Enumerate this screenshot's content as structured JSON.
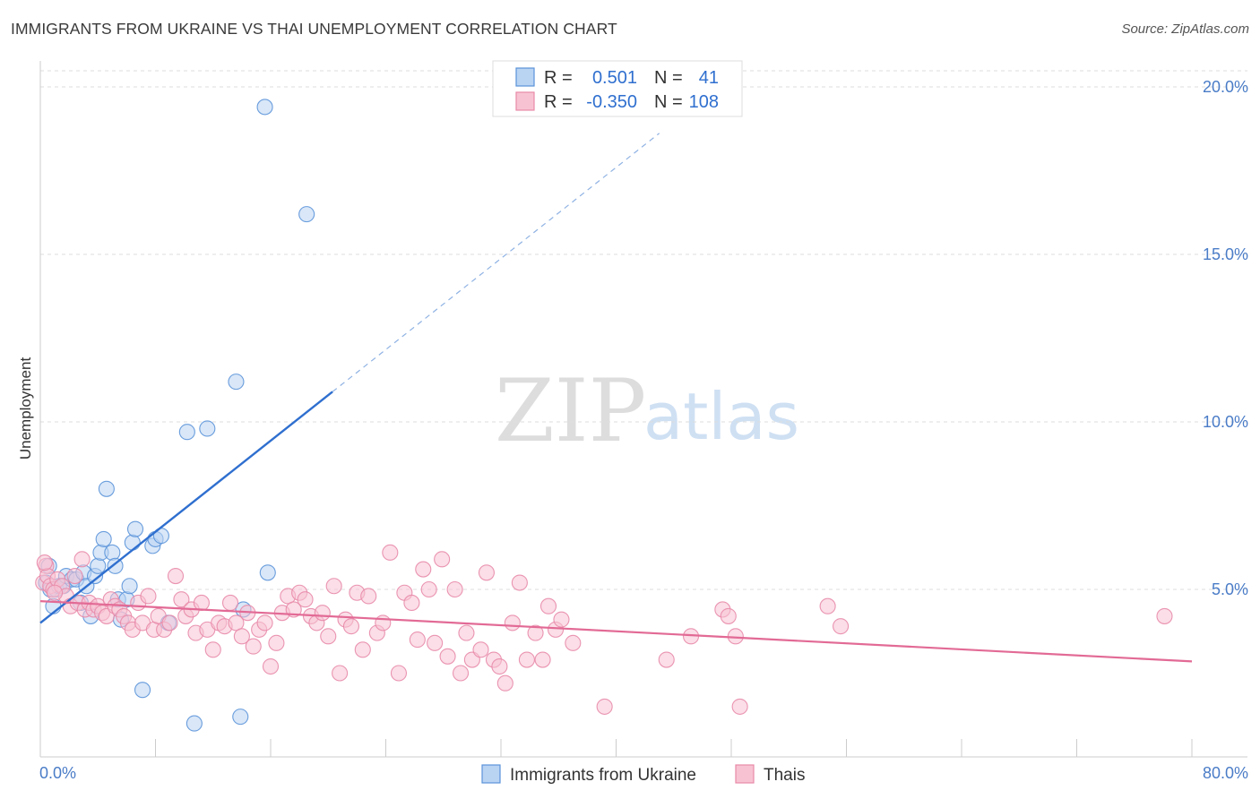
{
  "title": "IMMIGRANTS FROM UKRAINE VS THAI UNEMPLOYMENT CORRELATION CHART",
  "source": "Source: ZipAtlas.com",
  "watermark": {
    "zip": "ZIP",
    "atlas": "atlas"
  },
  "legend": {
    "r_label": "R =",
    "n_label": "N =",
    "rows": [
      {
        "r": "0.501",
        "n": "41"
      },
      {
        "r": "-0.350",
        "n": "108"
      }
    ]
  },
  "chart_data": {
    "type": "scatter",
    "xlabel": "",
    "ylabel": "Unemployment",
    "xlim": [
      0,
      80
    ],
    "ylim": [
      0,
      20.5
    ],
    "x_tick_labels": [
      "0.0%",
      "80.0%"
    ],
    "y_ticks": [
      5,
      10,
      15,
      20
    ],
    "y_tick_labels": [
      "5.0%",
      "10.0%",
      "15.0%",
      "20.0%"
    ],
    "grid": true,
    "legend_position": "top-center",
    "series": [
      {
        "name": "Immigrants from Ukraine",
        "color": "#5b93d9",
        "fill": "#b9d3f3",
        "trend": {
          "x0": 0.0,
          "y0": 4.0,
          "x1": 20.3,
          "y1": 10.9,
          "dashed_to_x": 43.0
        },
        "points": [
          [
            0.4,
            5.2
          ],
          [
            0.6,
            5.7
          ],
          [
            0.7,
            5.0
          ],
          [
            0.9,
            4.5
          ],
          [
            1.1,
            5.0
          ],
          [
            1.3,
            5.1
          ],
          [
            1.6,
            5.1
          ],
          [
            1.8,
            5.4
          ],
          [
            2.2,
            5.3
          ],
          [
            2.5,
            5.3
          ],
          [
            2.8,
            4.6
          ],
          [
            3.0,
            5.5
          ],
          [
            3.2,
            5.1
          ],
          [
            3.5,
            4.2
          ],
          [
            3.8,
            5.4
          ],
          [
            4.0,
            5.7
          ],
          [
            4.2,
            6.1
          ],
          [
            4.4,
            6.5
          ],
          [
            4.6,
            8.0
          ],
          [
            5.0,
            6.1
          ],
          [
            5.2,
            5.7
          ],
          [
            5.4,
            4.7
          ],
          [
            5.6,
            4.1
          ],
          [
            6.0,
            4.7
          ],
          [
            6.2,
            5.1
          ],
          [
            6.4,
            6.4
          ],
          [
            6.6,
            6.8
          ],
          [
            7.1,
            2.0
          ],
          [
            7.8,
            6.3
          ],
          [
            8.0,
            6.5
          ],
          [
            8.4,
            6.6
          ],
          [
            8.9,
            4.0
          ],
          [
            10.2,
            9.7
          ],
          [
            10.7,
            1.0
          ],
          [
            11.6,
            9.8
          ],
          [
            13.6,
            11.2
          ],
          [
            13.9,
            1.2
          ],
          [
            14.1,
            4.4
          ],
          [
            15.6,
            19.4
          ],
          [
            15.8,
            5.5
          ],
          [
            18.5,
            16.2
          ]
        ]
      },
      {
        "name": "Thais",
        "color": "#e88aa8",
        "fill": "#f7c3d3",
        "trend": {
          "x0": 0.0,
          "y0": 4.65,
          "x1": 80.0,
          "y1": 2.85
        },
        "points": [
          [
            0.2,
            5.2
          ],
          [
            0.4,
            5.7
          ],
          [
            0.5,
            5.4
          ],
          [
            0.7,
            5.1
          ],
          [
            0.9,
            5.0
          ],
          [
            1.2,
            5.3
          ],
          [
            1.5,
            5.1
          ],
          [
            1.8,
            4.8
          ],
          [
            2.1,
            4.5
          ],
          [
            2.4,
            5.4
          ],
          [
            2.6,
            4.6
          ],
          [
            2.9,
            5.9
          ],
          [
            3.1,
            4.4
          ],
          [
            3.4,
            4.6
          ],
          [
            3.7,
            4.4
          ],
          [
            4.0,
            4.5
          ],
          [
            4.3,
            4.3
          ],
          [
            4.6,
            4.2
          ],
          [
            4.9,
            4.7
          ],
          [
            5.2,
            4.5
          ],
          [
            5.5,
            4.4
          ],
          [
            5.8,
            4.2
          ],
          [
            6.1,
            4.0
          ],
          [
            6.4,
            3.8
          ],
          [
            6.8,
            4.6
          ],
          [
            7.1,
            4.0
          ],
          [
            7.5,
            4.8
          ],
          [
            7.9,
            3.8
          ],
          [
            8.2,
            4.2
          ],
          [
            8.6,
            3.8
          ],
          [
            9.0,
            4.0
          ],
          [
            9.4,
            5.4
          ],
          [
            9.8,
            4.7
          ],
          [
            10.1,
            4.2
          ],
          [
            10.5,
            4.4
          ],
          [
            10.8,
            3.7
          ],
          [
            11.2,
            4.6
          ],
          [
            11.6,
            3.8
          ],
          [
            12.0,
            3.2
          ],
          [
            12.4,
            4.0
          ],
          [
            12.8,
            3.9
          ],
          [
            13.2,
            4.6
          ],
          [
            13.6,
            4.0
          ],
          [
            14.0,
            3.6
          ],
          [
            14.4,
            4.3
          ],
          [
            14.8,
            3.3
          ],
          [
            15.2,
            3.8
          ],
          [
            15.6,
            4.0
          ],
          [
            16.0,
            2.7
          ],
          [
            16.4,
            3.4
          ],
          [
            16.8,
            4.3
          ],
          [
            17.2,
            4.8
          ],
          [
            17.6,
            4.4
          ],
          [
            18.0,
            4.9
          ],
          [
            18.4,
            4.7
          ],
          [
            18.8,
            4.2
          ],
          [
            19.2,
            4.0
          ],
          [
            19.6,
            4.3
          ],
          [
            20.0,
            3.6
          ],
          [
            20.4,
            5.1
          ],
          [
            20.8,
            2.5
          ],
          [
            21.2,
            4.1
          ],
          [
            21.6,
            3.9
          ],
          [
            22.0,
            4.9
          ],
          [
            22.4,
            3.2
          ],
          [
            22.8,
            4.8
          ],
          [
            23.4,
            3.7
          ],
          [
            23.8,
            4.0
          ],
          [
            24.3,
            6.1
          ],
          [
            24.9,
            2.5
          ],
          [
            25.3,
            4.9
          ],
          [
            25.8,
            4.6
          ],
          [
            26.2,
            3.5
          ],
          [
            26.6,
            5.6
          ],
          [
            27.0,
            5.0
          ],
          [
            27.4,
            3.4
          ],
          [
            27.9,
            5.9
          ],
          [
            28.3,
            3.0
          ],
          [
            28.8,
            5.0
          ],
          [
            29.2,
            2.5
          ],
          [
            29.6,
            3.7
          ],
          [
            30.0,
            2.9
          ],
          [
            30.6,
            3.2
          ],
          [
            31.0,
            5.5
          ],
          [
            31.5,
            2.9
          ],
          [
            31.9,
            2.7
          ],
          [
            32.3,
            2.2
          ],
          [
            32.8,
            4.0
          ],
          [
            33.3,
            5.2
          ],
          [
            33.8,
            2.9
          ],
          [
            34.4,
            3.7
          ],
          [
            34.9,
            2.9
          ],
          [
            35.3,
            4.5
          ],
          [
            35.8,
            3.8
          ],
          [
            36.2,
            4.1
          ],
          [
            37.0,
            3.4
          ],
          [
            39.2,
            1.5
          ],
          [
            43.5,
            2.9
          ],
          [
            45.2,
            3.6
          ],
          [
            47.4,
            4.4
          ],
          [
            47.8,
            4.2
          ],
          [
            48.3,
            3.6
          ],
          [
            48.6,
            1.5
          ],
          [
            54.7,
            4.5
          ],
          [
            55.6,
            3.9
          ],
          [
            78.1,
            4.2
          ],
          [
            0.3,
            5.8
          ],
          [
            1.0,
            4.9
          ]
        ]
      }
    ]
  },
  "bottom_legend": [
    {
      "label": "Immigrants from Ukraine"
    },
    {
      "label": "Thais"
    }
  ]
}
